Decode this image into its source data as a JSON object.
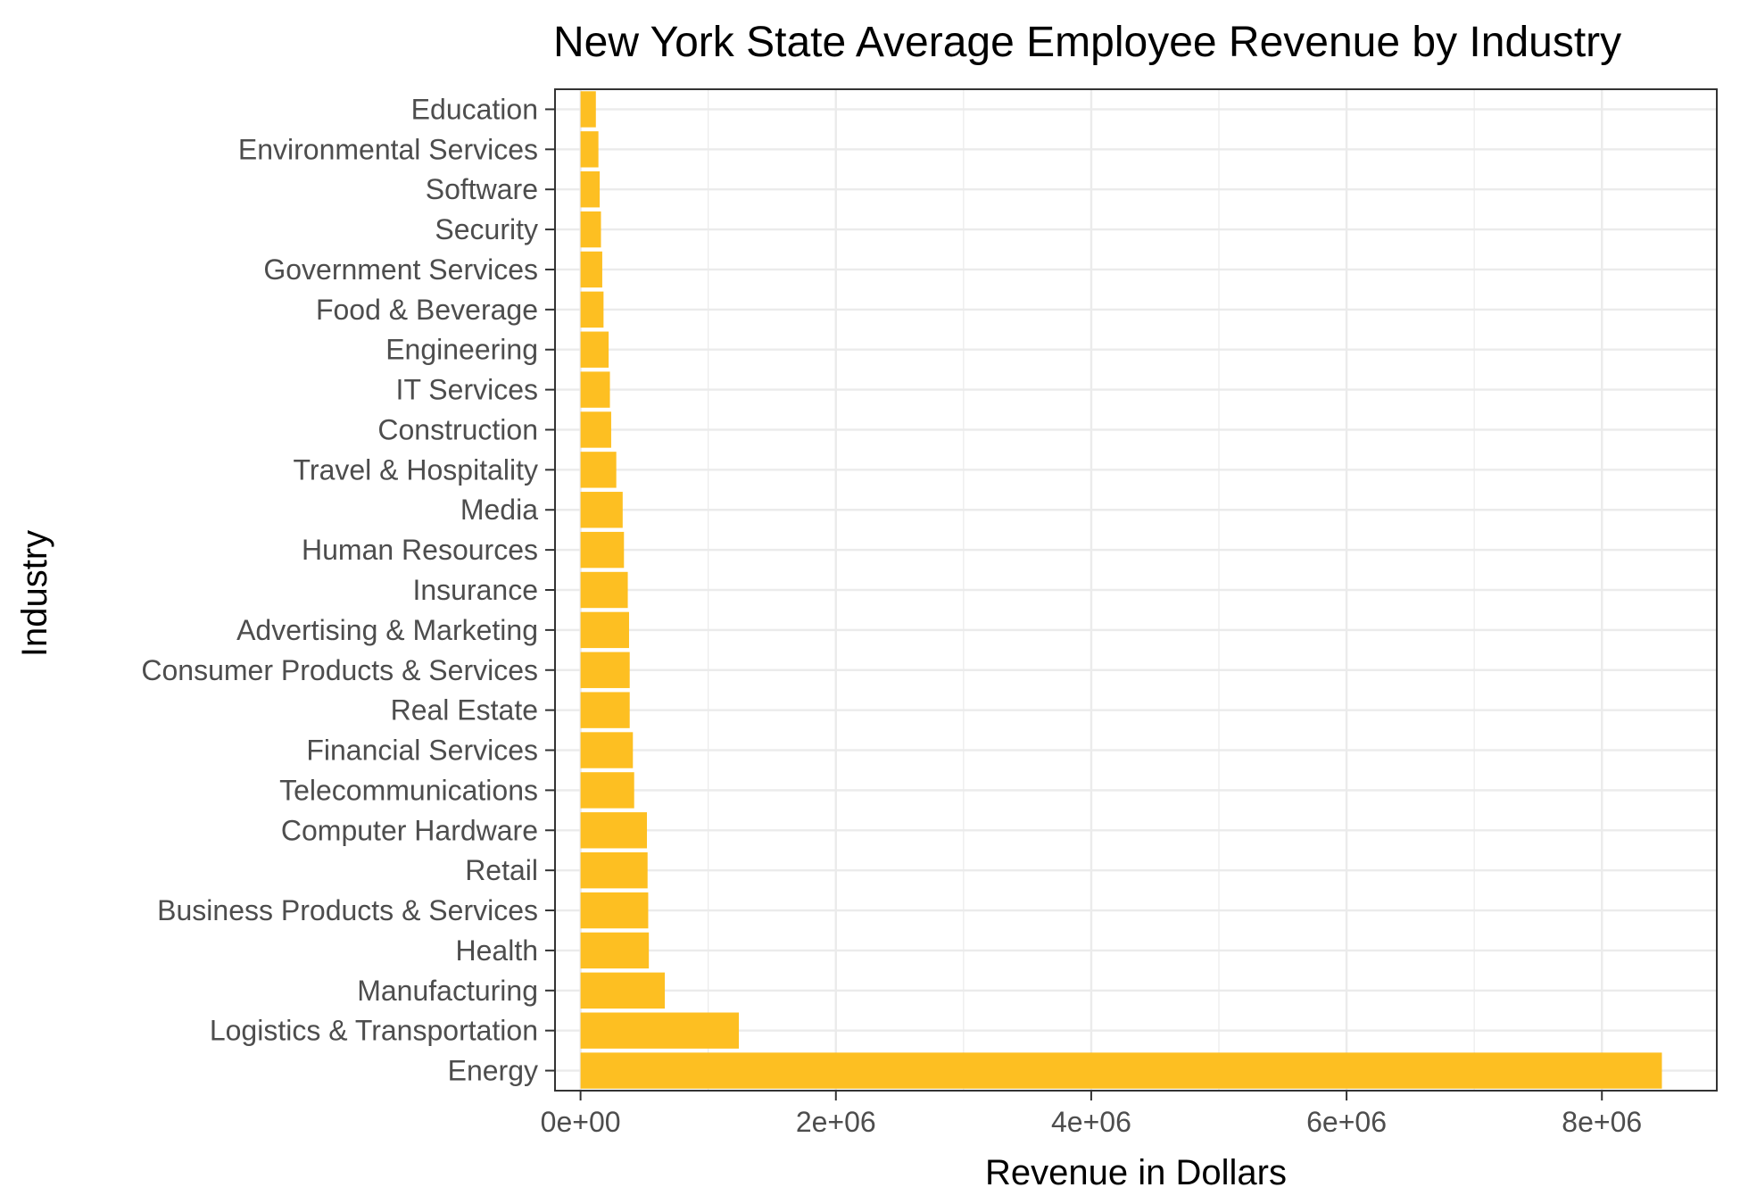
{
  "chart_data": {
    "type": "bar",
    "orientation": "horizontal",
    "title": "New York State Average Employee Revenue by Industry",
    "xlabel": "Revenue in Dollars",
    "ylabel": "Industry",
    "xlim": [
      -200000,
      8900000
    ],
    "x_ticks": [
      0,
      2000000,
      4000000,
      6000000,
      8000000
    ],
    "x_tick_labels": [
      "0e+00",
      "2e+06",
      "4e+06",
      "6e+06",
      "8e+06"
    ],
    "grid": true,
    "legend": "none",
    "bar_color": "#FDBF22",
    "categories": [
      "Education",
      "Environmental Services",
      "Software",
      "Security",
      "Government Services",
      "Food & Beverage",
      "Engineering",
      "IT Services",
      "Construction",
      "Travel & Hospitality",
      "Media",
      "Human Resources",
      "Insurance",
      "Advertising & Marketing",
      "Consumer Products & Services",
      "Real Estate",
      "Financial Services",
      "Telecommunications",
      "Computer Hardware",
      "Retail",
      "Business Products & Services",
      "Health",
      "Manufacturing",
      "Logistics & Transportation",
      "Energy"
    ],
    "values": [
      120000,
      140000,
      150000,
      160000,
      170000,
      180000,
      220000,
      230000,
      240000,
      280000,
      330000,
      340000,
      370000,
      380000,
      385000,
      385000,
      410000,
      420000,
      520000,
      525000,
      530000,
      535000,
      660000,
      1240000,
      8470000
    ]
  }
}
